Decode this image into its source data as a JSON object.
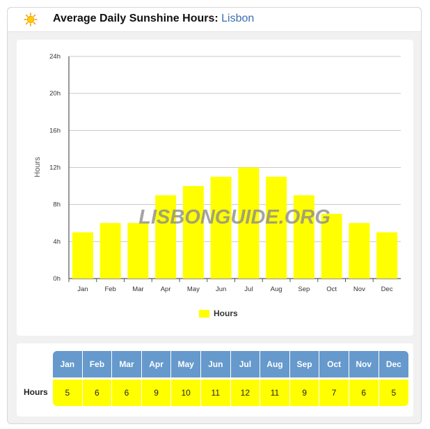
{
  "header": {
    "title": "Average Daily Sunshine Hours:",
    "city": "Lisbon",
    "icon": "sun-icon"
  },
  "watermark": "LISBONGUIDE.ORG",
  "colors": {
    "bar": "#ffff00",
    "header_cell": "#6699cc",
    "city": "#3a6fb0"
  },
  "chart_data": {
    "type": "bar",
    "categories": [
      "Jan",
      "Feb",
      "Mar",
      "Apr",
      "May",
      "Jun",
      "Jul",
      "Aug",
      "Sep",
      "Oct",
      "Nov",
      "Dec"
    ],
    "series": [
      {
        "name": "Hours",
        "values": [
          5,
          6,
          6,
          9,
          10,
          11,
          12,
          11,
          9,
          7,
          6,
          5
        ]
      }
    ],
    "ylabel": "Hours",
    "yticks": [
      "0h",
      "4h",
      "8h",
      "12h",
      "16h",
      "20h",
      "24h"
    ],
    "ylim": [
      0,
      24
    ],
    "grid": true,
    "legend_position": "bottom"
  },
  "table": {
    "row_label": "Hours",
    "months": [
      "Jan",
      "Feb",
      "Mar",
      "Apr",
      "May",
      "Jun",
      "Jul",
      "Aug",
      "Sep",
      "Oct",
      "Nov",
      "Dec"
    ],
    "values": [
      "5",
      "6",
      "6",
      "9",
      "10",
      "11",
      "12",
      "11",
      "9",
      "7",
      "6",
      "5"
    ]
  }
}
